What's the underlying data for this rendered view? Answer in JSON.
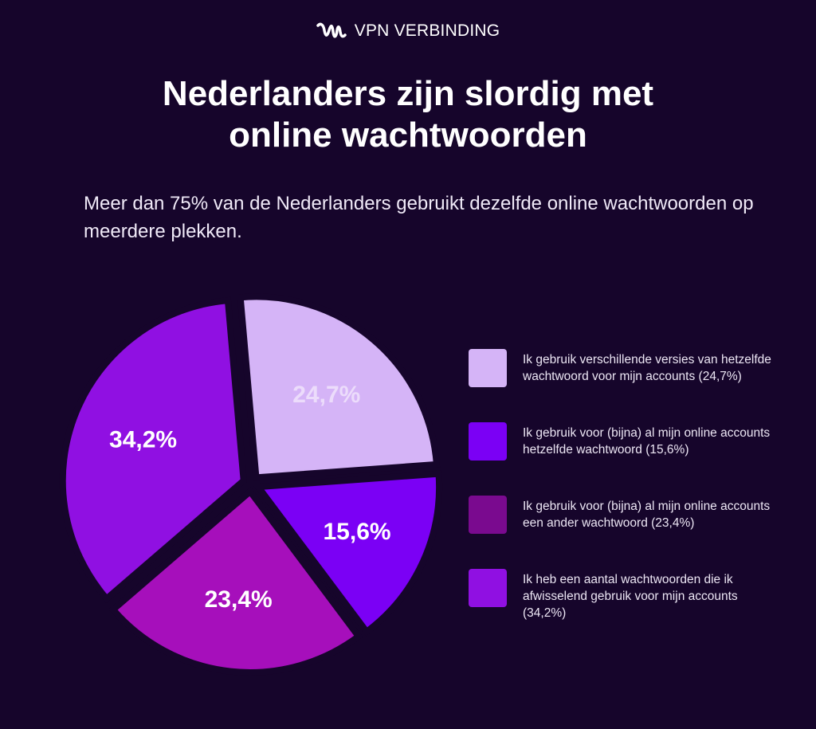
{
  "brand": {
    "name": "VPN VERBINDING",
    "logo_icon": "waveform-logo-icon"
  },
  "header": {
    "title_line1": "Nederlanders zijn slordig met",
    "title_line2": "online wachtwoorden",
    "subtitle": "Meer dan 75% van de Nederlanders gebruikt dezelfde online wachtwoorden op meerdere plekken."
  },
  "colors": {
    "background": "#16052b",
    "text": "#ffffff"
  },
  "chart_data": {
    "type": "pie",
    "title": "Nederlanders zijn slordig met online wachtwoorden",
    "legend_position": "right",
    "slices": [
      {
        "label": "Ik gebruik verschillende versies van hetzelfde wachtwoord voor mijn accounts (24,7%)",
        "value": 24.7,
        "display": "24,7%",
        "color": "#d5b4f7",
        "label_color": "#ecdcfb"
      },
      {
        "label": "Ik gebruik voor (bijna) al mijn online accounts hetzelfde wachtwoord (15,6%)",
        "value": 15.6,
        "display": "15,6%",
        "color": "#7b00f5",
        "label_color": "#ffffff"
      },
      {
        "label": "Ik gebruik voor (bijna) al mijn online accounts een ander wachtwoord (23,4%)",
        "value": 23.4,
        "display": "23,4%",
        "color": "#a60fbb",
        "legend_color": "#7a0a8f",
        "label_color": "#ffffff"
      },
      {
        "label": "Ik heb een aantal wachtwoorden die ik afwisselend gebruik voor mijn accounts (34,2%)",
        "value": 34.2,
        "display": "34,2%",
        "color": "#9010e2",
        "label_color": "#ffffff"
      }
    ]
  }
}
